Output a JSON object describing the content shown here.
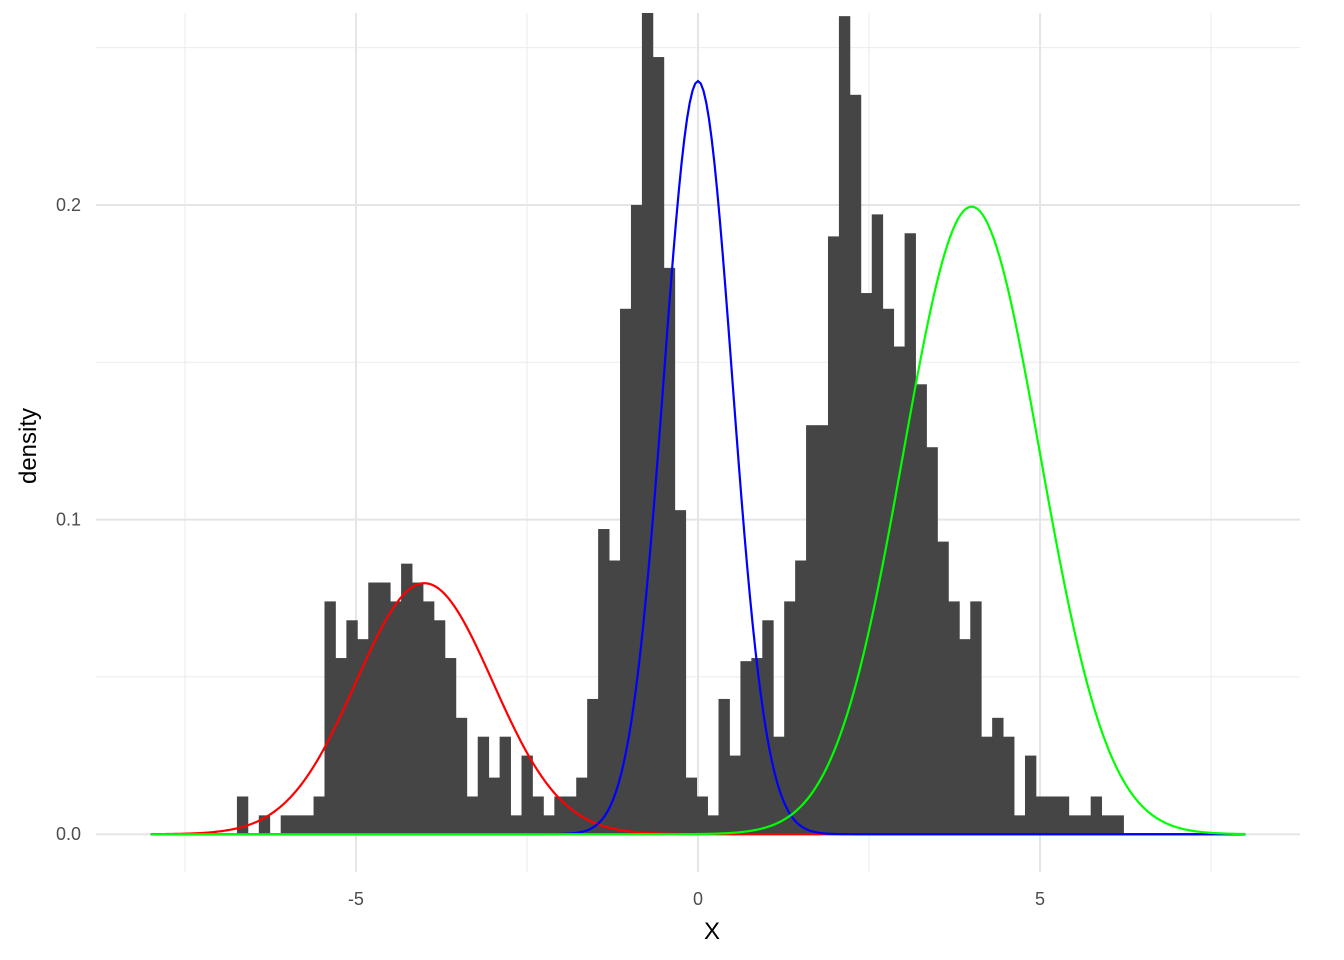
{
  "chart_data": {
    "type": "bar",
    "subtype": "histogram-with-density-curves",
    "title": "",
    "xlabel": "X",
    "ylabel": "density",
    "xlim": [
      -8.8,
      8.8
    ],
    "ylim": [
      -0.012,
      0.261
    ],
    "x_major_ticks": [
      -5,
      0,
      5
    ],
    "x_tick_labels": [
      "-5",
      "0",
      "5"
    ],
    "x_minor_grid": [
      -7.5,
      -2.5,
      2.5,
      7.5
    ],
    "y_major_ticks": [
      0,
      0.1,
      0.2
    ],
    "y_tick_labels": [
      "0.0",
      "0.1",
      "0.2"
    ],
    "y_minor_grid": [
      0.05,
      0.15,
      0.25
    ],
    "grid": true,
    "legend": "none",
    "bin_width": 0.16,
    "bins_x_center": [
      -6.66,
      -6.5,
      -6.34,
      -6.18,
      -6.02,
      -5.86,
      -5.7,
      -5.54,
      -5.38,
      -5.22,
      -5.06,
      -4.9,
      -4.74,
      -4.58,
      -4.42,
      -4.26,
      -4.1,
      -3.94,
      -3.78,
      -3.62,
      -3.46,
      -3.3,
      -3.14,
      -2.98,
      -2.82,
      -2.66,
      -2.5,
      -2.34,
      -2.18,
      -2.02,
      -1.86,
      -1.7,
      -1.54,
      -1.38,
      -1.22,
      -1.06,
      -0.9,
      -0.74,
      -0.58,
      -0.42,
      -0.26,
      -0.1,
      0.06,
      0.22,
      0.38,
      0.54,
      0.7,
      0.86,
      1.02,
      1.18,
      1.34,
      1.5,
      1.66,
      1.82,
      1.98,
      2.14,
      2.3,
      2.46,
      2.62,
      2.78,
      2.94,
      3.1,
      3.26,
      3.42,
      3.58,
      3.74,
      3.9,
      4.06,
      4.22,
      4.38,
      4.54,
      4.7,
      4.86,
      5.02,
      5.18,
      5.34,
      5.5,
      5.66,
      5.82,
      5.98,
      6.14,
      6.3,
      6.46,
      6.62,
      6.78,
      6.94,
      7.1
    ],
    "bins_density": [
      0.012,
      0.0,
      0.006,
      0.0,
      0.006,
      0.006,
      0.006,
      0.012,
      0.074,
      0.056,
      0.068,
      0.062,
      0.08,
      0.08,
      0.074,
      0.086,
      0.08,
      0.074,
      0.068,
      0.056,
      0.037,
      0.012,
      0.031,
      0.018,
      0.031,
      0.006,
      0.025,
      0.012,
      0.006,
      0.012,
      0.012,
      0.018,
      0.043,
      0.097,
      0.087,
      0.167,
      0.2,
      0.261,
      0.247,
      0.18,
      0.103,
      0.018,
      0.012,
      0.006,
      0.043,
      0.025,
      0.055,
      0.056,
      0.068,
      0.031,
      0.074,
      0.087,
      0.13,
      0.13,
      0.19,
      0.26,
      0.235,
      0.172,
      0.197,
      0.167,
      0.155,
      0.191,
      0.143,
      0.123,
      0.093,
      0.074,
      0.062,
      0.074,
      0.031,
      0.037,
      0.031,
      0.006,
      0.025,
      0.012,
      0.012,
      0.012,
      0.006,
      0.006,
      0.012,
      0.006,
      0.006,
      0.0,
      0.0,
      0.0,
      0.0,
      0.0,
      0.0
    ],
    "bar_color": "#454545",
    "curves": [
      {
        "mean": -4,
        "sd": 1,
        "weight": 0.2,
        "color": "#ff0000"
      },
      {
        "mean": 0,
        "sd": 0.5,
        "weight": 0.3,
        "color": "#0000ff"
      },
      {
        "mean": 4,
        "sd": 1,
        "weight": 0.5,
        "color": "#00ff00"
      }
    ],
    "curve_range": [
      -8,
      8
    ]
  }
}
